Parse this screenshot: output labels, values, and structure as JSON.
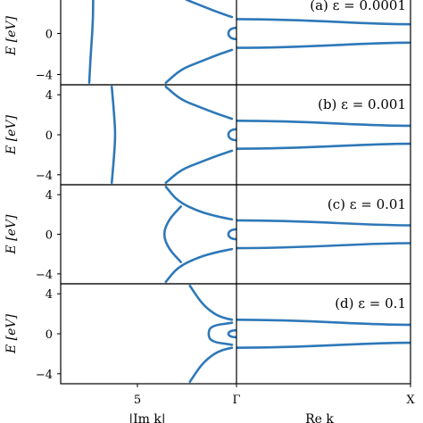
{
  "chart_data": {
    "type": "line",
    "layout": "4 stacked panels, each split into left (imaginary k) and right (real k) subplots",
    "line_color": "#2e78b8",
    "shared_x_ticks": [
      "5",
      "Γ",
      "X"
    ],
    "x_axis_label_left": "|Im k|",
    "x_axis_label_right": "Re k",
    "ylabel": "E [eV]",
    "y_ticks": [
      -4,
      0,
      4
    ],
    "ylim": [
      -5,
      5
    ],
    "panels": [
      {
        "label": "(a) ε = 0.0001",
        "epsilon": 0.0001,
        "left_branches": [
          {
            "name": "far",
            "x": [
              3.55,
              3.6,
              3.65,
              3.68,
              3.68
            ],
            "y": [
              -4.8,
              -2,
              0,
              2,
              4.8
            ]
          },
          {
            "name": "upper",
            "x": [
              6.1,
              6.6,
              7.2,
              7.8,
              8.3
            ],
            "y": [
              4.8,
              3.5,
              2.8,
              2.1,
              1.6
            ]
          },
          {
            "name": "lower",
            "x": [
              6.1,
              6.6,
              7.2,
              7.8,
              8.3
            ],
            "y": [
              -4.8,
              -3.5,
              -2.8,
              -2.1,
              -1.6
            ]
          }
        ],
        "loop": {
          "x_left": 8.15,
          "y_half": 0.55
        },
        "right_bands": {
          "upper_gamma": 1.4,
          "upper_x": 0.9,
          "lower_gamma": -1.4,
          "lower_x": -0.9
        }
      },
      {
        "label": "(b) ε = 0.001",
        "epsilon": 0.001,
        "left_branches": [
          {
            "name": "far",
            "x": [
              4.3,
              4.38,
              4.42,
              4.38,
              4.3
            ],
            "y": [
              -4.8,
              -2,
              0,
              2,
              4.8
            ]
          },
          {
            "name": "upper",
            "x": [
              6.1,
              6.6,
              7.2,
              7.8,
              8.3
            ],
            "y": [
              4.8,
              3.5,
              2.8,
              2.1,
              1.6
            ]
          },
          {
            "name": "lower",
            "x": [
              6.1,
              6.6,
              7.2,
              7.8,
              8.3
            ],
            "y": [
              -4.8,
              -3.5,
              -2.8,
              -2.1,
              -1.6
            ]
          }
        ],
        "loop": {
          "x_left": 8.15,
          "y_half": 0.55
        },
        "right_bands": {
          "upper_gamma": 1.4,
          "upper_x": 0.9,
          "lower_gamma": -1.4,
          "lower_x": -0.9
        }
      },
      {
        "label": "(c) ε = 0.01",
        "epsilon": 0.01,
        "left_branches": [
          {
            "name": "upper",
            "x": [
              6.1,
              6.5,
              7.2,
              7.8,
              8.3
            ],
            "y": [
              4.8,
              3.3,
              2.3,
              1.8,
              1.5
            ]
          },
          {
            "name": "lower",
            "x": [
              6.1,
              6.5,
              7.2,
              7.8,
              8.3
            ],
            "y": [
              -4.8,
              -3.3,
              -2.3,
              -1.8,
              -1.5
            ]
          },
          {
            "name": "bulge",
            "x": [
              6.6,
              6.2,
              6.0,
              6.2,
              6.6
            ],
            "y": [
              2.8,
              1.5,
              0,
              -1.5,
              -2.8
            ]
          }
        ],
        "loop": {
          "x_left": 8.15,
          "y_half": 0.5
        },
        "right_bands": {
          "upper_gamma": 1.4,
          "upper_x": 0.9,
          "lower_gamma": -1.4,
          "lower_x": -0.9
        }
      },
      {
        "label": "(d) ε = 0.1",
        "epsilon": 0.1,
        "left_branches": [
          {
            "name": "upper",
            "x": [
              6.9,
              7.3,
              7.7,
              8.0,
              8.3
            ],
            "y": [
              4.8,
              3.0,
              2.0,
              1.6,
              1.4
            ]
          },
          {
            "name": "lower",
            "x": [
              6.9,
              7.3,
              7.7,
              8.0,
              8.3
            ],
            "y": [
              -4.8,
              -3.0,
              -2.0,
              -1.6,
              -1.4
            ]
          },
          {
            "name": "inner",
            "x": [
              8.3,
              7.6,
              7.5,
              7.6,
              8.3
            ],
            "y": [
              1.1,
              0.8,
              0,
              -0.8,
              -1.1
            ]
          }
        ],
        "loop": {
          "x_left": 8.15,
          "y_half": 0.35
        },
        "right_bands": {
          "upper_gamma": 1.4,
          "upper_x": 0.9,
          "lower_gamma": -1.4,
          "lower_x": -0.9
        }
      }
    ]
  }
}
